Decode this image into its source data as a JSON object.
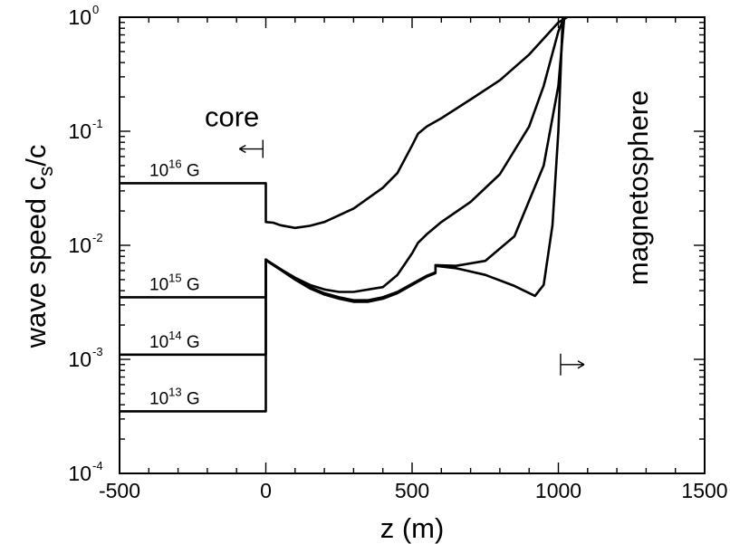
{
  "chart_data": {
    "type": "line",
    "title": "",
    "xlabel": "z (m)",
    "ylabel": {
      "prefix": "wave speed c",
      "sub": "s",
      "suffix": "/c"
    },
    "xlim": [
      -500,
      1500
    ],
    "ylim": [
      0.0001,
      1
    ],
    "yscale": "log",
    "grid": false,
    "x_ticks": [
      {
        "value": -500,
        "label": "-500"
      },
      {
        "value": 0,
        "label": "0"
      },
      {
        "value": 500,
        "label": "500"
      },
      {
        "value": 1000,
        "label": "1000"
      },
      {
        "value": 1500,
        "label": "1500"
      }
    ],
    "y_ticks": [
      {
        "value": 0.0001,
        "base": "10",
        "exp": "-4"
      },
      {
        "value": 0.001,
        "base": "10",
        "exp": "-3"
      },
      {
        "value": 0.01,
        "base": "10",
        "exp": "-2"
      },
      {
        "value": 0.1,
        "base": "10",
        "exp": "-1"
      },
      {
        "value": 1,
        "base": "10",
        "exp": "0"
      }
    ],
    "annotations": [
      {
        "text": "core",
        "arrow": "left",
        "x": -10,
        "y": 0.07
      },
      {
        "text": "magnetosphere",
        "arrow": "right",
        "x": 1020,
        "y": 0.0009
      }
    ],
    "series": [
      {
        "label": {
          "base": "10",
          "exp": "16",
          "unit": " G"
        },
        "points": [
          [
            -500,
            0.035
          ],
          [
            0,
            0.035
          ],
          [
            0,
            0.016
          ],
          [
            25,
            0.0158
          ],
          [
            50,
            0.015
          ],
          [
            100,
            0.0142
          ],
          [
            150,
            0.0148
          ],
          [
            200,
            0.016
          ],
          [
            300,
            0.021
          ],
          [
            400,
            0.032
          ],
          [
            450,
            0.043
          ],
          [
            500,
            0.075
          ],
          [
            520,
            0.095
          ],
          [
            550,
            0.11
          ],
          [
            600,
            0.13
          ],
          [
            700,
            0.19
          ],
          [
            800,
            0.28
          ],
          [
            900,
            0.47
          ],
          [
            950,
            0.65
          ],
          [
            1000,
            0.9
          ],
          [
            1030,
            1.0
          ]
        ]
      },
      {
        "label": {
          "base": "10",
          "exp": "15",
          "unit": " G"
        },
        "points": [
          [
            -500,
            0.0035
          ],
          [
            0,
            0.0035
          ],
          [
            0,
            0.0075
          ],
          [
            10,
            0.0072
          ],
          [
            50,
            0.0062
          ],
          [
            100,
            0.0052
          ],
          [
            150,
            0.0045
          ],
          [
            200,
            0.0041
          ],
          [
            250,
            0.0039
          ],
          [
            300,
            0.0039
          ],
          [
            400,
            0.0043
          ],
          [
            450,
            0.0055
          ],
          [
            500,
            0.0085
          ],
          [
            520,
            0.0105
          ],
          [
            550,
            0.0125
          ],
          [
            600,
            0.016
          ],
          [
            700,
            0.024
          ],
          [
            800,
            0.042
          ],
          [
            900,
            0.11
          ],
          [
            950,
            0.25
          ],
          [
            1000,
            0.75
          ],
          [
            1020,
            1.0
          ]
        ]
      },
      {
        "label": {
          "base": "10",
          "exp": "14",
          "unit": " G"
        },
        "points": [
          [
            -500,
            0.0011
          ],
          [
            0,
            0.0011
          ],
          [
            0,
            0.0075
          ],
          [
            10,
            0.0072
          ],
          [
            50,
            0.0062
          ],
          [
            100,
            0.0051
          ],
          [
            150,
            0.0043
          ],
          [
            200,
            0.0038
          ],
          [
            250,
            0.0035
          ],
          [
            300,
            0.0033
          ],
          [
            350,
            0.0033
          ],
          [
            400,
            0.0035
          ],
          [
            450,
            0.0039
          ],
          [
            500,
            0.0046
          ],
          [
            550,
            0.0054
          ],
          [
            580,
            0.0058
          ],
          [
            580,
            0.0067
          ],
          [
            650,
            0.0066
          ],
          [
            750,
            0.0073
          ],
          [
            850,
            0.012
          ],
          [
            950,
            0.05
          ],
          [
            1000,
            0.25
          ],
          [
            1020,
            1.0
          ]
        ]
      },
      {
        "label": {
          "base": "10",
          "exp": "13",
          "unit": " G"
        },
        "points": [
          [
            -500,
            0.00035
          ],
          [
            0,
            0.00035
          ],
          [
            0,
            0.0075
          ],
          [
            10,
            0.0071
          ],
          [
            50,
            0.0061
          ],
          [
            100,
            0.005
          ],
          [
            150,
            0.0042
          ],
          [
            200,
            0.0037
          ],
          [
            250,
            0.0034
          ],
          [
            300,
            0.0032
          ],
          [
            350,
            0.0032
          ],
          [
            400,
            0.0034
          ],
          [
            450,
            0.0038
          ],
          [
            500,
            0.0045
          ],
          [
            550,
            0.0053
          ],
          [
            580,
            0.0057
          ],
          [
            580,
            0.0066
          ],
          [
            650,
            0.0063
          ],
          [
            750,
            0.0055
          ],
          [
            850,
            0.0044
          ],
          [
            920,
            0.0036
          ],
          [
            950,
            0.0045
          ],
          [
            980,
            0.015
          ],
          [
            1000,
            0.1
          ],
          [
            1015,
            1.0
          ]
        ]
      }
    ]
  }
}
